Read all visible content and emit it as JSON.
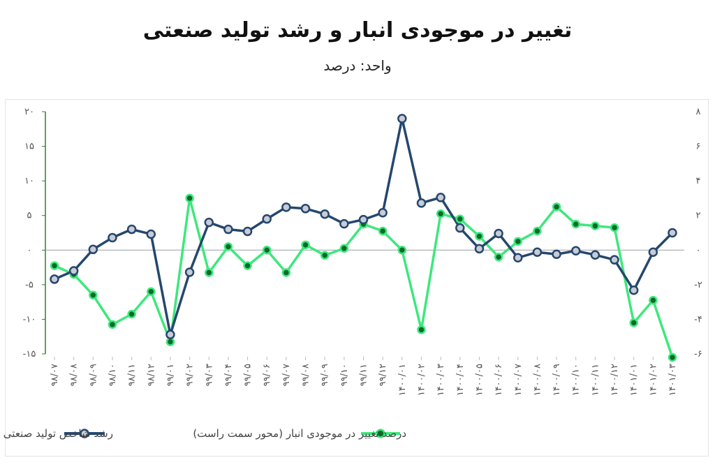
{
  "title": "تغییر در موجودی انبار و رشد تولید صنعتی",
  "subtitle": "واحد: درصد",
  "colors": {
    "industrial": "#25476d",
    "inventory": "#3de87c",
    "marker_fill": "#c9ccd6",
    "inventory_marker_fill": "#0f6a2a",
    "zero_line": "#9aa0a6",
    "left_axis": "#2e7d32"
  },
  "chart_data": {
    "type": "line",
    "x": [
      "۹۸/۰۷",
      "۹۸/۰۸",
      "۹۸/۰۹",
      "۹۸/۱۰",
      "۹۸/۱۱",
      "۹۸/۱۲",
      "۹۹/۰۱",
      "۹۹/۰۲",
      "۹۹/۰۳",
      "۹۹/۰۴",
      "۹۹/۰۵",
      "۹۹/۰۶",
      "۹۹/۰۷",
      "۹۹/۰۸",
      "۹۹/۰۹",
      "۹۹/۱۰",
      "۹۹/۱۱",
      "۹۹/۱۲",
      "۱۴۰۰/۰۱",
      "۱۴۰۰/۰۲",
      "۱۴۰۰/۰۳",
      "۱۴۰۰/۰۴",
      "۱۴۰۰/۰۵",
      "۱۴۰۰/۰۶",
      "۱۴۰۰/۰۷",
      "۱۴۰۰/۰۸",
      "۱۴۰۰/۰۹",
      "۱۴۰۰/۱۰",
      "۱۴۰۰/۱۱",
      "۱۴۰۰/۱۲",
      "۱۴۰۱/۰۱",
      "۱۴۰۱/۰۲",
      "۱۴۰۱/۰۳"
    ],
    "series": [
      {
        "name": "رشد شاخص تولید صنعتی (محور سمت چپ)",
        "axis": "left",
        "values": [
          -4.2,
          -3.0,
          0.1,
          1.8,
          3.0,
          2.3,
          -12.2,
          -3.2,
          4.0,
          3.0,
          2.7,
          4.5,
          6.2,
          6.0,
          5.2,
          3.8,
          4.4,
          5.4,
          19.0,
          6.8,
          7.6,
          3.2,
          0.2,
          2.4,
          -1.1,
          -0.3,
          -0.6,
          -0.1,
          -0.7,
          -1.4,
          -5.8,
          -0.3,
          2.5
        ]
      },
      {
        "name": "درصد تغییر در موجودی انبار (محور سمت راست)",
        "axis": "right",
        "values": [
          -0.9,
          -1.4,
          -2.6,
          -4.3,
          -3.7,
          -2.4,
          -5.3,
          3.0,
          -1.3,
          0.2,
          -0.9,
          0.0,
          -1.3,
          0.3,
          -0.3,
          0.1,
          1.5,
          1.1,
          0.0,
          -4.6,
          2.1,
          1.8,
          0.8,
          -0.4,
          0.5,
          1.1,
          2.5,
          1.5,
          1.4,
          1.3,
          -4.2,
          -2.9,
          -6.2
        ]
      }
    ],
    "left_axis": {
      "ylim": [
        -15,
        20
      ],
      "ticks": [
        -15,
        -10,
        -5,
        0,
        5,
        10,
        15,
        20
      ],
      "tick_labels": [
        "-۱۵",
        "-۱۰",
        "-۵",
        "۰",
        "۵",
        "۱۰",
        "۱۵",
        "۲۰"
      ]
    },
    "right_axis": {
      "ylim": [
        -6,
        8
      ],
      "ticks": [
        -6,
        -4,
        -2,
        0,
        2,
        4,
        6,
        8
      ],
      "tick_labels": [
        "-۶",
        "-۴",
        "-۲",
        "۰",
        "۲",
        "۴",
        "۶",
        "۸"
      ]
    },
    "grid": false,
    "legend": "bottom"
  }
}
